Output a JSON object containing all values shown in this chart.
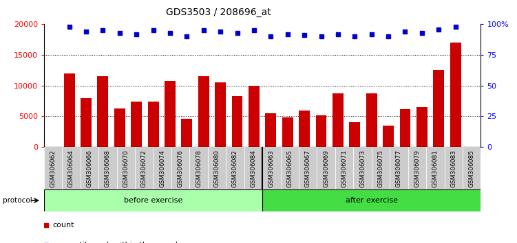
{
  "title": "GDS3503 / 208696_at",
  "categories": [
    "GSM306062",
    "GSM306064",
    "GSM306066",
    "GSM306068",
    "GSM306070",
    "GSM306072",
    "GSM306074",
    "GSM306076",
    "GSM306078",
    "GSM306080",
    "GSM306082",
    "GSM306084",
    "GSM306063",
    "GSM306065",
    "GSM306067",
    "GSM306069",
    "GSM306071",
    "GSM306073",
    "GSM306075",
    "GSM306077",
    "GSM306079",
    "GSM306081",
    "GSM306083",
    "GSM306085"
  ],
  "bar_values": [
    12000,
    8000,
    11500,
    6300,
    7400,
    7400,
    10800,
    4600,
    11500,
    10500,
    8300,
    10000,
    5500,
    4800,
    6000,
    5200,
    8800,
    4100,
    8700,
    3500,
    6200,
    6500,
    12600,
    17000
  ],
  "percentile_values": [
    98,
    94,
    95,
    93,
    92,
    95,
    93,
    90,
    95,
    94,
    93,
    95,
    90,
    92,
    91,
    90,
    92,
    90,
    92,
    90,
    94,
    93,
    96,
    98
  ],
  "bar_color": "#cc0000",
  "dot_color": "#0000cc",
  "before_exercise_count": 12,
  "before_label": "before exercise",
  "after_label": "after exercise",
  "protocol_label": "protocol",
  "before_color": "#aaffaa",
  "after_color": "#44dd44",
  "ylim_left": [
    0,
    20000
  ],
  "ylim_right": [
    0,
    100
  ],
  "yticks_left": [
    0,
    5000,
    10000,
    15000,
    20000
  ],
  "yticks_right": [
    0,
    25,
    50,
    75,
    100
  ],
  "title_fontsize": 10,
  "tick_label_fontsize": 6.5,
  "cell_bg": "#cccccc",
  "cell_border": "#888888"
}
